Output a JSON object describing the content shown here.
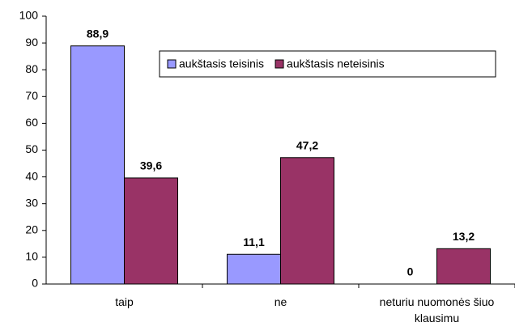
{
  "chart_data": {
    "type": "bar",
    "categories": [
      "taip",
      "ne",
      "neturiu nuomonės šiuo klausimu"
    ],
    "series": [
      {
        "name": "aukštasis teisinis",
        "color": "#9999ff",
        "values": [
          88.9,
          11.1,
          0
        ],
        "value_labels": [
          "88,9",
          "11,1",
          "0"
        ]
      },
      {
        "name": "aukštasis neteisinis",
        "color": "#993366",
        "values": [
          39.6,
          47.2,
          13.2
        ],
        "value_labels": [
          "39,6",
          "47,2",
          "13,2"
        ]
      }
    ],
    "ylim": [
      0,
      100
    ],
    "yticks": [
      0,
      10,
      20,
      30,
      40,
      50,
      60,
      70,
      80,
      90,
      100
    ],
    "legend": "upper right"
  }
}
